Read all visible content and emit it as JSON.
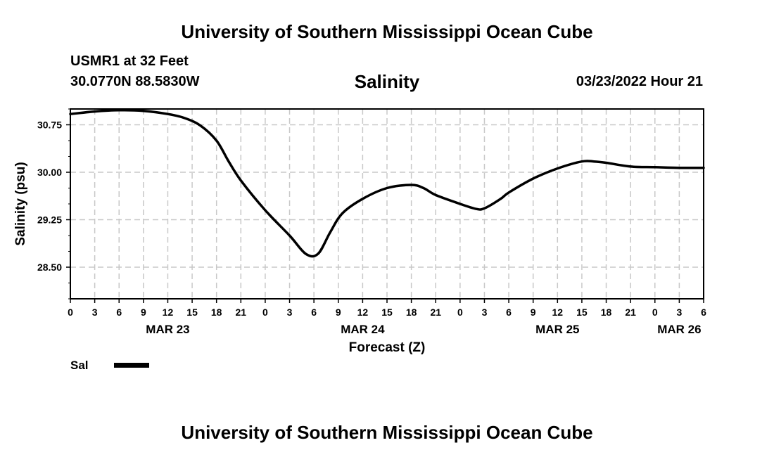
{
  "header": {
    "title": "University of Southern Mississippi Ocean Cube",
    "station": "USMR1 at 32 Feet",
    "coords": "30.0770N  88.5830W",
    "subtitle": "Salinity",
    "datetime": "03/23/2022 Hour 21"
  },
  "footer": {
    "title": "University of Southern Mississippi Ocean Cube"
  },
  "legend": {
    "label": "Sal",
    "color": "#000000"
  },
  "chart_data": {
    "type": "line",
    "title": "Salinity",
    "xlabel": "Forecast (Z)",
    "ylabel": "Salinity (psu)",
    "xlim": [
      0,
      78
    ],
    "ylim": [
      28.0,
      31.0
    ],
    "yticks": [
      28.5,
      29.25,
      30.0,
      30.75
    ],
    "ytick_labels": [
      "28.50",
      "29.25",
      "30.00",
      "30.75"
    ],
    "xticks": [
      0,
      3,
      6,
      9,
      12,
      15,
      18,
      21,
      24,
      27,
      30,
      33,
      36,
      39,
      42,
      45,
      48,
      51,
      54,
      57,
      60,
      63,
      66,
      69,
      72,
      75,
      78
    ],
    "xtick_labels": [
      "0",
      "3",
      "6",
      "9",
      "12",
      "15",
      "18",
      "21",
      "0",
      "3",
      "6",
      "9",
      "12",
      "15",
      "18",
      "21",
      "0",
      "3",
      "6",
      "9",
      "12",
      "15",
      "18",
      "21",
      "0",
      "3",
      "6"
    ],
    "date_labels": [
      {
        "label": "MAR 23",
        "x": 12
      },
      {
        "label": "MAR 24",
        "x": 36
      },
      {
        "label": "MAR 25",
        "x": 60
      },
      {
        "label": "MAR 26",
        "x": 75
      }
    ],
    "grid": true,
    "series": [
      {
        "name": "Sal",
        "color": "#000000",
        "x": [
          0,
          3,
          6,
          9,
          12,
          14,
          16,
          18,
          19.5,
          21,
          24,
          27,
          29,
          30.5,
          32,
          33.5,
          36,
          39,
          42,
          43.5,
          45,
          48,
          50,
          51,
          53,
          54,
          57,
          60,
          63,
          64.5,
          66,
          69,
          72,
          75,
          78
        ],
        "y": [
          30.92,
          30.96,
          30.98,
          30.97,
          30.92,
          30.86,
          30.74,
          30.5,
          30.17,
          29.87,
          29.4,
          29.0,
          28.71,
          28.71,
          29.05,
          29.35,
          29.58,
          29.75,
          29.8,
          29.75,
          29.64,
          29.5,
          29.42,
          29.43,
          29.58,
          29.68,
          29.9,
          30.06,
          30.17,
          30.17,
          30.15,
          30.09,
          30.08,
          30.07,
          30.07
        ]
      }
    ]
  }
}
